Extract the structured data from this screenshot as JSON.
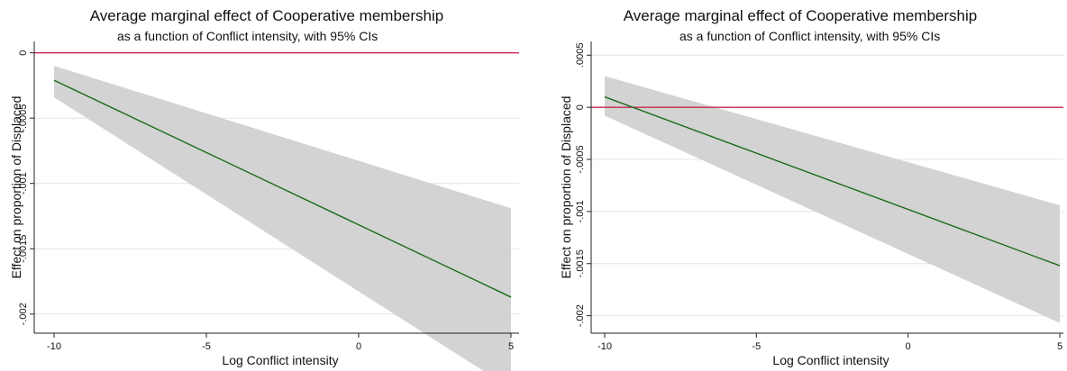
{
  "chart_data": [
    {
      "type": "line",
      "title": "Average marginal effect of Cooperative membership",
      "subtitle": "as a function of Conflict intensity, with 95% CIs",
      "xlabel": "Log Conflict intensity",
      "ylabel": "Effect on proportion of Displaced",
      "xlim": [
        -10,
        5
      ],
      "ylim": [
        -0.0021,
        5e-05
      ],
      "x_ticks": [
        -10,
        -5,
        0,
        5
      ],
      "x_tick_labels": [
        "-10",
        "-5",
        "0",
        "5"
      ],
      "y_ticks": [
        0,
        -0.0005,
        -0.001,
        -0.0015,
        -0.002
      ],
      "y_tick_labels": [
        "0",
        "-.0005",
        "-.001",
        "-.0015",
        "-.002"
      ],
      "grid": true,
      "reference_line": 0,
      "series": [
        {
          "x": [
            -10,
            5
          ],
          "y": [
            -0.00021,
            -0.00187
          ],
          "ci_lower": [
            -0.00034,
            -0.00257
          ],
          "ci_upper": [
            -0.0001,
            -0.00119
          ]
        }
      ],
      "colors": {
        "line": "#1a6b1a",
        "band": "#d3d3d3",
        "reference": "#c8284e",
        "grid": "#e4e4e4",
        "axis": "#222222"
      }
    },
    {
      "type": "line",
      "title": "Average marginal effect of Cooperative membership",
      "subtitle": "as a function of Conflict intensity, with 95% CIs",
      "xlabel": "Log Conflict intensity",
      "ylabel": "Effect on proportion of Displaced",
      "xlim": [
        -10,
        5
      ],
      "ylim": [
        -0.00212,
        0.0005
      ],
      "x_ticks": [
        -10,
        -5,
        0,
        5
      ],
      "x_tick_labels": [
        "-10",
        "-5",
        "0",
        "5"
      ],
      "y_ticks": [
        0.0005,
        0,
        -0.0005,
        -0.001,
        -0.0015,
        -0.002
      ],
      "y_tick_labels": [
        ".0005",
        "0",
        "-.0005",
        "-.001",
        "-.0015",
        "-.002"
      ],
      "grid": true,
      "reference_line": 0,
      "series": [
        {
          "x": [
            -10,
            5
          ],
          "y": [
            0.0001,
            -0.00152
          ],
          "ci_lower": [
            -8e-05,
            -0.00207
          ],
          "ci_upper": [
            0.0003,
            -0.00094
          ]
        }
      ],
      "colors": {
        "line": "#1a6b1a",
        "band": "#d3d3d3",
        "reference": "#c8284e",
        "grid": "#e4e4e4",
        "axis": "#222222"
      }
    }
  ]
}
